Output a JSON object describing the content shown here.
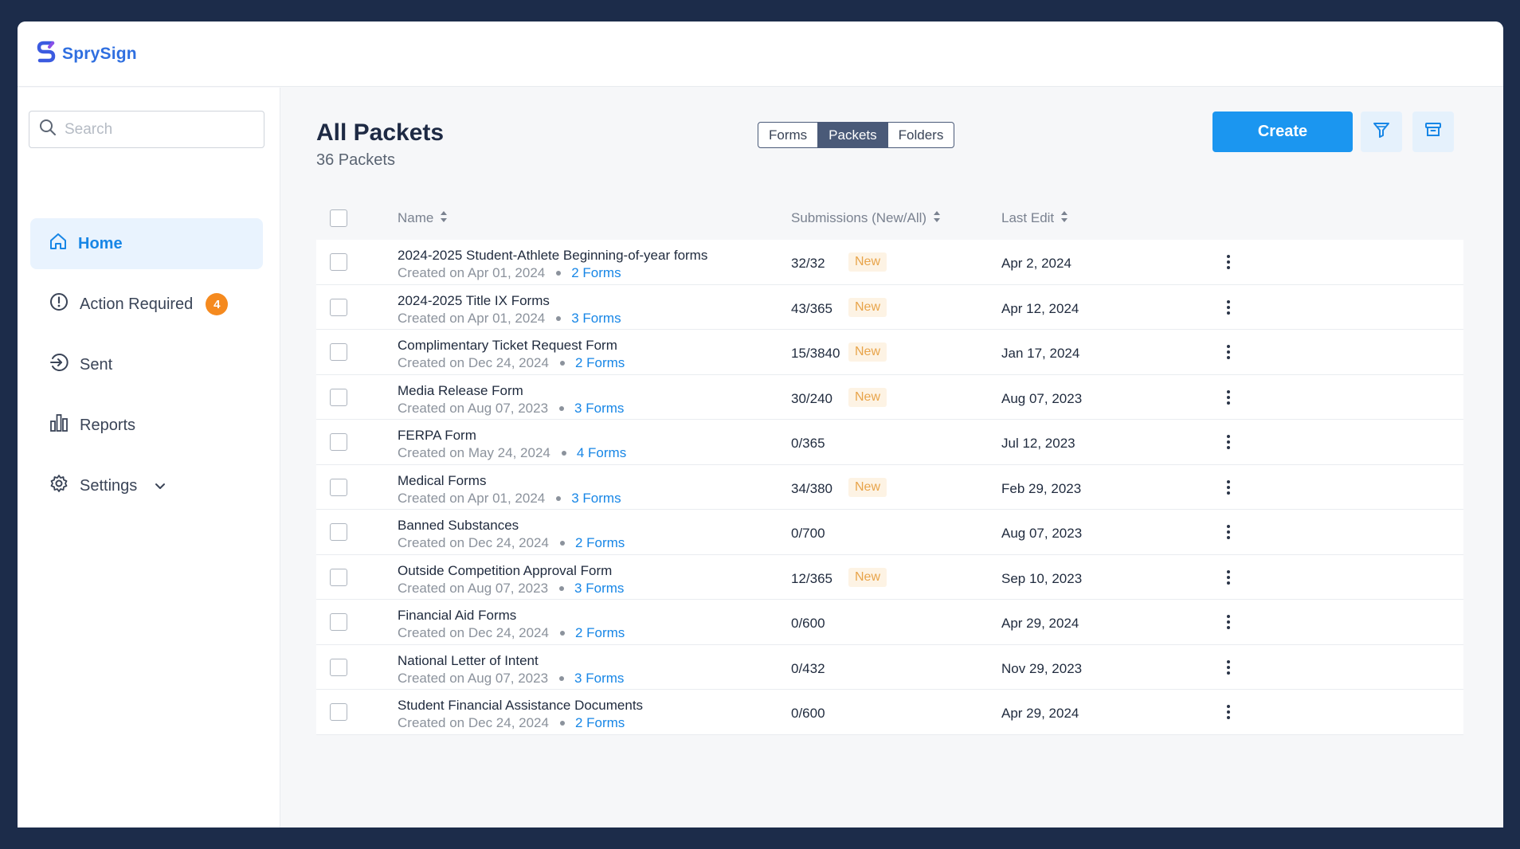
{
  "app": {
    "name": "SprySign"
  },
  "search": {
    "placeholder": "Search"
  },
  "sidebar": {
    "items": [
      {
        "label": "Home",
        "icon": "home-icon"
      },
      {
        "label": "Action Required",
        "icon": "alert-circle-icon",
        "badge": "4"
      },
      {
        "label": "Sent",
        "icon": "sent-arrow-icon"
      },
      {
        "label": "Reports",
        "icon": "bar-chart-icon"
      },
      {
        "label": "Settings",
        "icon": "gear-icon"
      }
    ]
  },
  "header": {
    "title": "All Packets",
    "subtitle": "36 Packets",
    "tabs": [
      "Forms",
      "Packets",
      "Folders"
    ],
    "active_tab": "Packets",
    "create_label": "Create"
  },
  "table": {
    "columns": [
      "Name",
      "Submissions (New/All)",
      "Last Edit"
    ],
    "rows": [
      {
        "name": "2024-2025 Student-Athlete Beginning-of-year forms",
        "created": "Created on Apr 01, 2024",
        "forms": "2 Forms",
        "submissions": "32/32",
        "new": "New",
        "last_edit": "Apr 2, 2024"
      },
      {
        "name": "2024-2025 Title IX Forms",
        "created": "Created on Apr 01, 2024",
        "forms": "3 Forms",
        "submissions": "43/365",
        "new": "New",
        "last_edit": "Apr 12, 2024"
      },
      {
        "name": "Complimentary Ticket Request Form",
        "created": "Created on Dec 24, 2024",
        "forms": "2 Forms",
        "submissions": "15/3840",
        "new": "New",
        "last_edit": "Jan 17, 2024"
      },
      {
        "name": "Media Release Form",
        "created": "Created on Aug 07, 2023",
        "forms": "3 Forms",
        "submissions": "30/240",
        "new": "New",
        "last_edit": "Aug 07, 2023"
      },
      {
        "name": "FERPA Form",
        "created": "Created on May 24, 2024",
        "forms": "4 Forms",
        "submissions": "0/365",
        "new": "",
        "last_edit": "Jul 12, 2023"
      },
      {
        "name": "Medical Forms",
        "created": "Created on Apr 01, 2024",
        "forms": "3 Forms",
        "submissions": "34/380",
        "new": "New",
        "last_edit": "Feb 29, 2023"
      },
      {
        "name": "Banned Substances",
        "created": "Created on Dec 24, 2024",
        "forms": "2 Forms",
        "submissions": "0/700",
        "new": "",
        "last_edit": "Aug 07, 2023"
      },
      {
        "name": "Outside Competition Approval Form",
        "created": "Created on Aug 07, 2023",
        "forms": "3 Forms",
        "submissions": "12/365",
        "new": "New",
        "last_edit": "Sep 10, 2023"
      },
      {
        "name": "Financial Aid Forms",
        "created": "Created on Dec 24, 2024",
        "forms": "2 Forms",
        "submissions": "0/600",
        "new": "",
        "last_edit": "Apr 29, 2024"
      },
      {
        "name": "National Letter of Intent",
        "created": "Created on Aug 07, 2023",
        "forms": "3 Forms",
        "submissions": "0/432",
        "new": "",
        "last_edit": "Nov 29, 2023"
      },
      {
        "name": "Student Financial Assistance Documents",
        "created": "Created on Dec 24, 2024",
        "forms": "2 Forms",
        "submissions": "0/600",
        "new": "",
        "last_edit": "Apr 29, 2024"
      }
    ]
  },
  "colors": {
    "accent": "#1b96f0",
    "brand": "#2f6fe0",
    "badge": "#f58a1f",
    "new_badge_text": "#e8a44a"
  }
}
